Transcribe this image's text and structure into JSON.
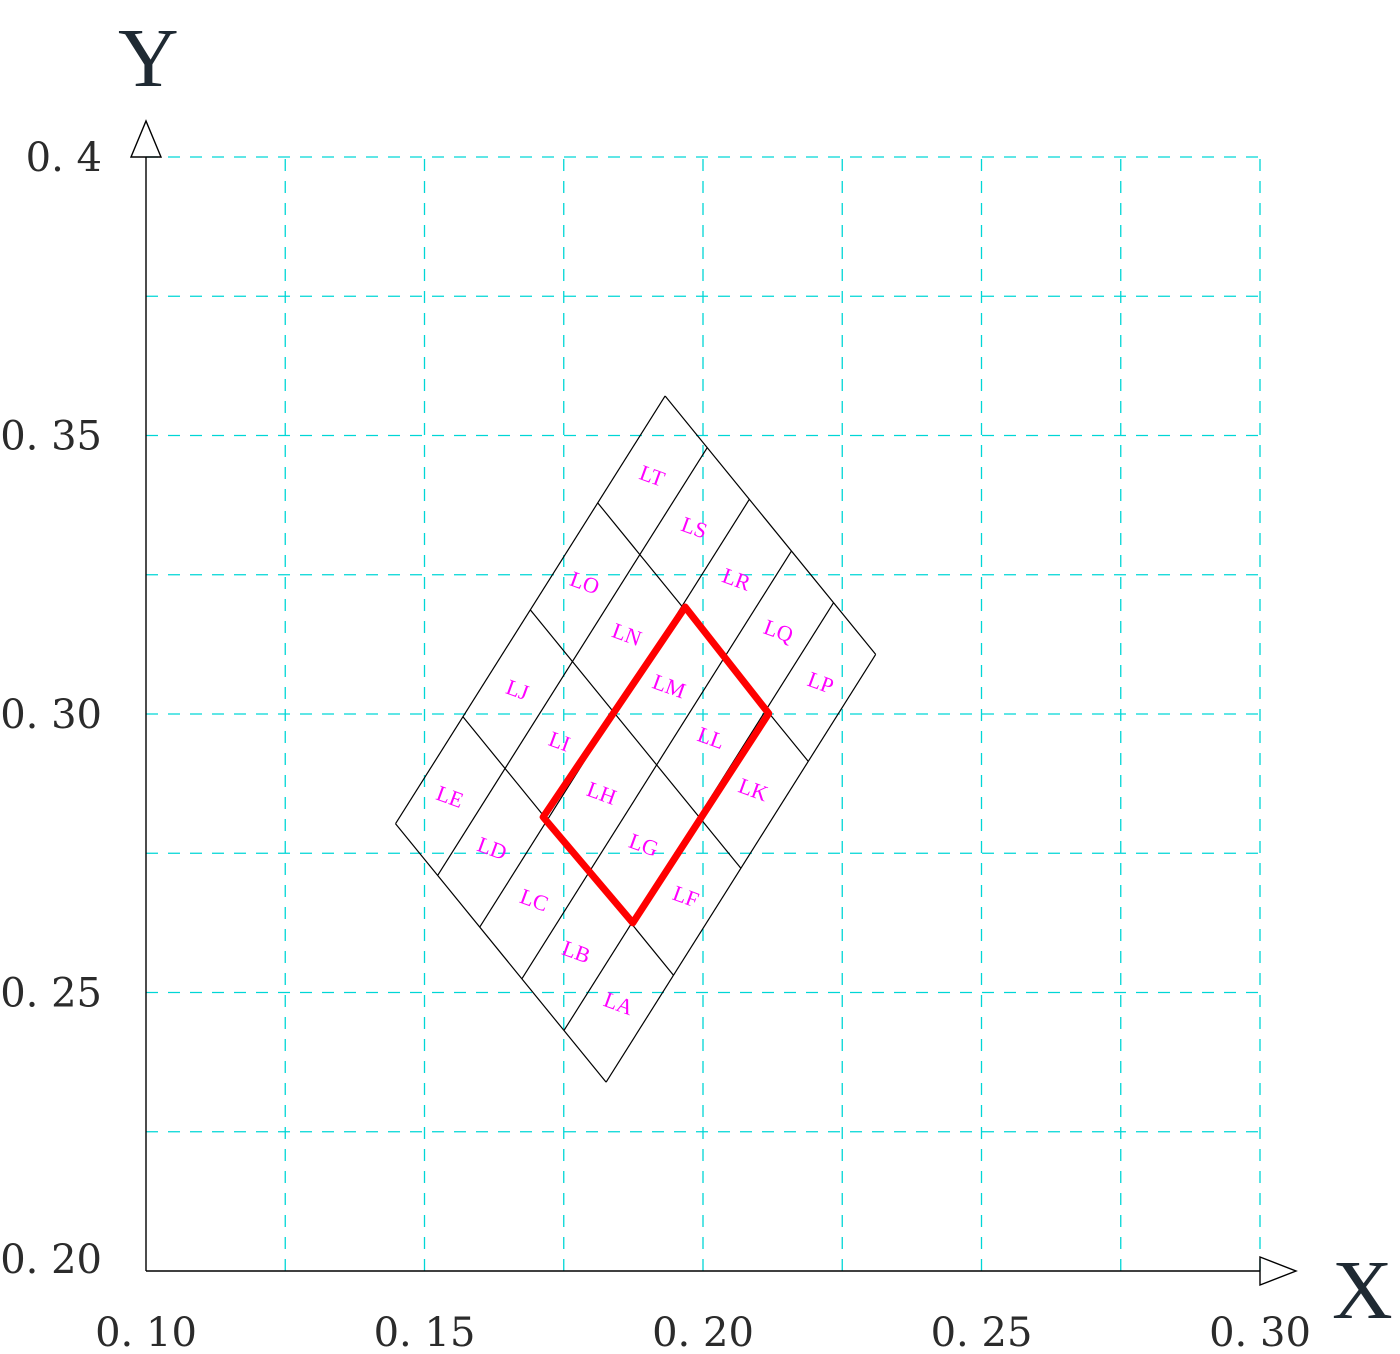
{
  "axes": {
    "x_letter": "X",
    "y_letter": "Y",
    "x_ticks": [
      {
        "value": 0.1,
        "label": "0. 10"
      },
      {
        "value": 0.15,
        "label": "0. 15"
      },
      {
        "value": 0.2,
        "label": "0. 20"
      },
      {
        "value": 0.25,
        "label": "0. 25"
      },
      {
        "value": 0.3,
        "label": "0. 30"
      }
    ],
    "y_ticks": [
      {
        "value": 0.2,
        "label": "0. 20"
      },
      {
        "value": 0.25,
        "label": "0. 25"
      },
      {
        "value": 0.3,
        "label": "0. 30"
      },
      {
        "value": 0.35,
        "label": "0. 35"
      },
      {
        "value": 0.4,
        "label": "0. 4"
      }
    ]
  },
  "chart_data": {
    "type": "scatter",
    "xlim": [
      0.1,
      0.3
    ],
    "ylim": [
      0.2,
      0.4
    ],
    "grid": true,
    "grid_step": 0.025,
    "grid_color": "#00d6d6",
    "bin_label_color": "#ff00ff",
    "highlight_color": "#ff0000",
    "bin_grid": {
      "corner_bottom": [
        0.1826,
        0.2339
      ],
      "corner_left": [
        0.1448,
        0.2803
      ],
      "corner_right": [
        0.231,
        0.3107
      ],
      "corner_top": [
        0.1934,
        0.3566
      ],
      "divisions_left_side": 4,
      "divisions_bottom_side": 5,
      "labels": [
        [
          "LA",
          "LF",
          "LK",
          "LP"
        ],
        [
          "LB",
          "LG",
          "LL",
          "LQ"
        ],
        [
          "LC",
          "LH",
          "LM",
          "LR"
        ],
        [
          "LD",
          "LI",
          "LN",
          "LS"
        ],
        [
          "LE",
          "LJ",
          "LO",
          "LT"
        ]
      ]
    },
    "highlight_region": [
      [
        0.1874,
        0.2625
      ],
      [
        0.1713,
        0.2815
      ],
      [
        0.1968,
        0.3192
      ],
      [
        0.2118,
        0.3001
      ]
    ]
  }
}
